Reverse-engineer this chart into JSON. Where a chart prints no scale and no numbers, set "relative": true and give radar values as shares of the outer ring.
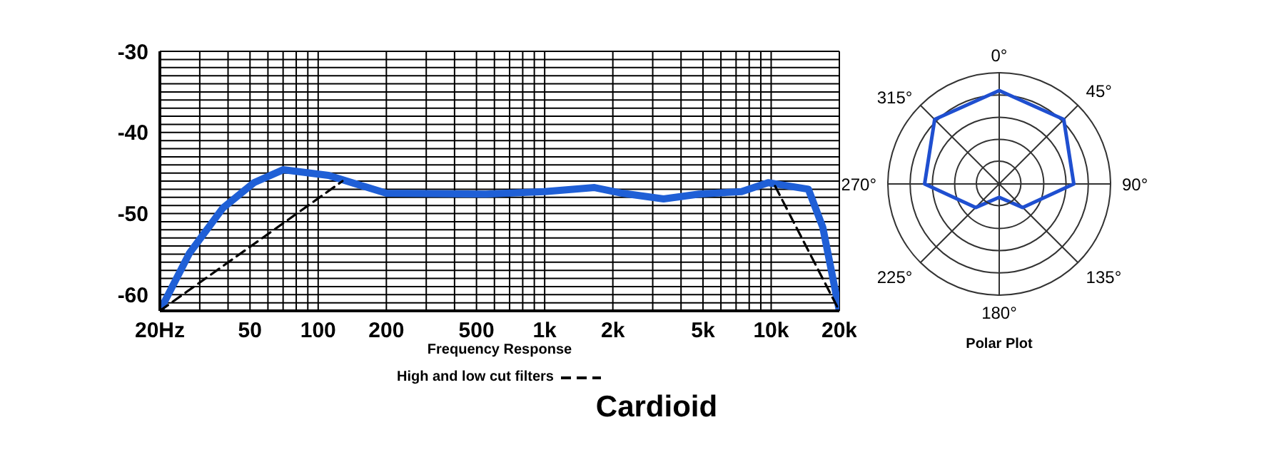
{
  "chart_data": [
    {
      "type": "line",
      "title": "Cardioid",
      "xlabel": "Frequency Response",
      "log": "x",
      "grid": true,
      "legend": "bottom",
      "xlim": [
        20,
        20000
      ],
      "ylim": [
        -62,
        -30
      ],
      "xticks": [
        {
          "value": 20,
          "label": "20Hz"
        },
        {
          "value": 30,
          "label": null
        },
        {
          "value": 40,
          "label": null
        },
        50,
        {
          "value": 60,
          "label": null
        },
        {
          "value": 70,
          "label": null
        },
        {
          "value": 80,
          "label": null
        },
        {
          "value": 90,
          "label": null
        },
        100,
        200,
        {
          "value": 300,
          "label": null
        },
        {
          "value": 400,
          "label": null
        },
        500,
        {
          "value": 600,
          "label": null
        },
        {
          "value": 700,
          "label": null
        },
        {
          "value": 800,
          "label": null
        },
        {
          "value": 900,
          "label": null
        },
        {
          "value": 1000,
          "label": "1k"
        },
        {
          "value": 2000,
          "label": "2k"
        },
        {
          "value": 3000,
          "label": null
        },
        {
          "value": 4000,
          "label": null
        },
        {
          "value": 5000,
          "label": "5k"
        },
        {
          "value": 6000,
          "label": null
        },
        {
          "value": 7000,
          "label": null
        },
        {
          "value": 8000,
          "label": null
        },
        {
          "value": 9000,
          "label": null
        },
        {
          "value": 10000,
          "label": "10k"
        },
        {
          "value": 20000,
          "label": "20k"
        }
      ],
      "yticks": [
        -30,
        {
          "value": -31,
          "label": null
        },
        {
          "value": -32,
          "label": null
        },
        {
          "value": -33,
          "label": null
        },
        {
          "value": -34,
          "label": null
        },
        {
          "value": -35,
          "label": null
        },
        {
          "value": -36,
          "label": null
        },
        {
          "value": -37,
          "label": null
        },
        {
          "value": -38,
          "label": null
        },
        {
          "value": -39,
          "label": null
        },
        -40,
        {
          "value": -41,
          "label": null
        },
        {
          "value": -42,
          "label": null
        },
        {
          "value": -43,
          "label": null
        },
        {
          "value": -44,
          "label": null
        },
        {
          "value": -45,
          "label": null
        },
        {
          "value": -46,
          "label": null
        },
        {
          "value": -47,
          "label": null
        },
        {
          "value": -48,
          "label": null
        },
        {
          "value": -49,
          "label": null
        },
        -50,
        {
          "value": -51,
          "label": null
        },
        {
          "value": -52,
          "label": null
        },
        {
          "value": -53,
          "label": null
        },
        {
          "value": -54,
          "label": null
        },
        {
          "value": -55,
          "label": null
        },
        {
          "value": -56,
          "label": null
        },
        {
          "value": -57,
          "label": null
        },
        {
          "value": -58,
          "label": null
        },
        {
          "value": -59,
          "label": null
        },
        -60,
        {
          "value": -61,
          "label": null
        },
        {
          "value": -62,
          "label": null
        }
      ],
      "series": [
        {
          "color": "#1f5fd6",
          "line_style": "solid",
          "x": [
            20,
            27,
            38,
            52,
            70,
            111,
            200,
            550,
            1000,
            1660,
            2200,
            3350,
            4800,
            7400,
            9700,
            14600,
            16900,
            20000
          ],
          "values": [
            -62,
            -54.9,
            -49.3,
            -46.2,
            -44.6,
            -45.3,
            -47.5,
            -47.6,
            -47.3,
            -46.8,
            -47.5,
            -48.2,
            -47.6,
            -47.3,
            -46.2,
            -47,
            -51.7,
            -62
          ]
        },
        {
          "name": "High and low cut filters",
          "color": "#000000",
          "line_style": "dashed",
          "x": [
            20,
            128,
            1000,
            10400,
            20000
          ],
          "values": [
            -62,
            -46,
            null,
            -46.6,
            -62
          ]
        }
      ]
    },
    {
      "type": "radar",
      "title": "Polar Plot",
      "relative": true,
      "grid": true,
      "categories": [
        "0°",
        "45°",
        "90°",
        "135°",
        "180°",
        "225°",
        "270°",
        "315°"
      ],
      "series": [
        {
          "color": "#1f4fd0",
          "values": [
            0.84,
            0.82,
            0.67,
            0.3,
            0.12,
            0.3,
            0.67,
            0.82
          ]
        }
      ]
    }
  ]
}
